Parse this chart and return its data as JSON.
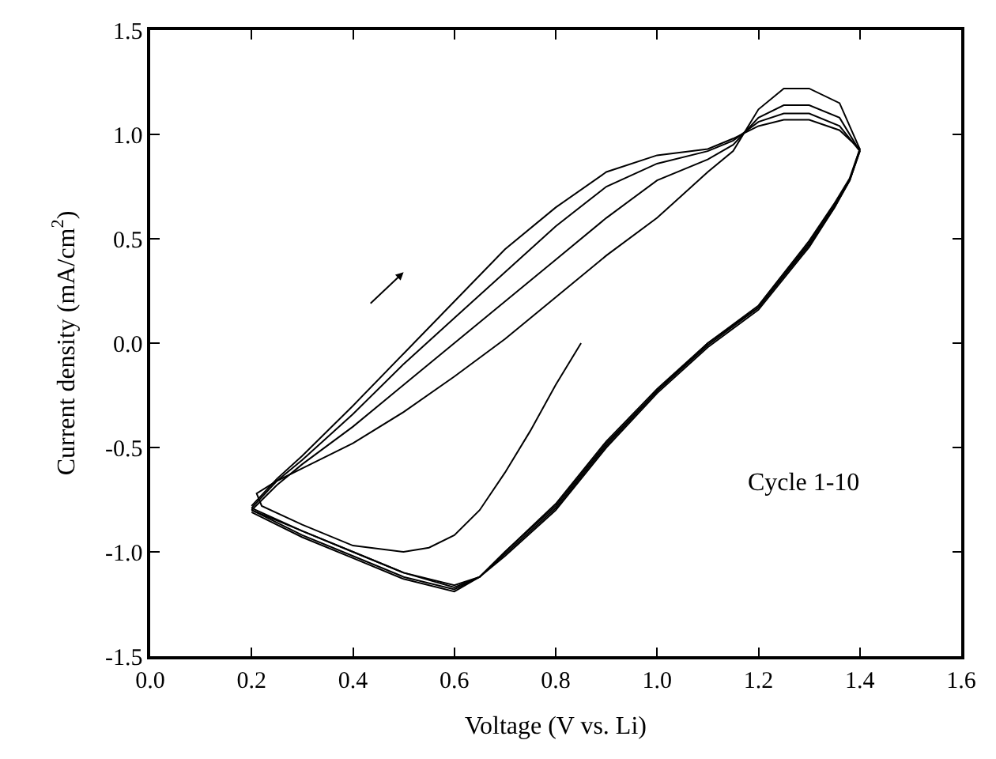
{
  "chart_data": {
    "type": "line",
    "xlabel": "Voltage (V vs. Li)",
    "ylabel": "Current density (mA/cm$^{2}$)",
    "annotations": [
      "Cycle 1-10"
    ],
    "xlim": [
      0.0,
      1.6
    ],
    "xticks": [
      {
        "value": 0,
        "label": "0.0"
      },
      0.2,
      0.4,
      0.6,
      0.8,
      {
        "value": 1,
        "label": "1.0"
      },
      1.2,
      1.4,
      1.6
    ],
    "ylim": [
      -1.5,
      1.5
    ],
    "yticks": [
      -1.5,
      {
        "value": -1,
        "label": "-1.0"
      },
      -0.5,
      {
        "value": 0,
        "label": "0.0"
      },
      0.5,
      {
        "value": 1,
        "label": "1.0"
      },
      1.5
    ],
    "marker": "none",
    "line_style": "solid",
    "series": [
      {
        "color": "#000000",
        "x": [
          0.85,
          0.8,
          0.75,
          0.7,
          0.65,
          0.6,
          0.55,
          0.5,
          0.4,
          0.3,
          0.22,
          0.21,
          0.25,
          0.3,
          0.4,
          0.5,
          0.6,
          0.7,
          0.8,
          0.9,
          1.0,
          1.1,
          1.15,
          1.2,
          1.25,
          1.3,
          1.36,
          1.4,
          1.38,
          1.35,
          1.3,
          1.2,
          1.1,
          1.0,
          0.9,
          0.8,
          0.7,
          0.65,
          0.6,
          0.5,
          0.4,
          0.3,
          0.2
        ],
        "values": [
          0.0,
          -0.2,
          -0.42,
          -0.62,
          -0.8,
          -0.92,
          -0.98,
          -1.0,
          -0.97,
          -0.87,
          -0.78,
          -0.72,
          -0.66,
          -0.6,
          -0.48,
          -0.33,
          -0.16,
          0.02,
          0.22,
          0.42,
          0.6,
          0.82,
          0.92,
          1.12,
          1.22,
          1.22,
          1.15,
          0.93,
          0.78,
          0.65,
          0.46,
          0.16,
          -0.02,
          -0.24,
          -0.5,
          -0.8,
          -1.02,
          -1.12,
          -1.16,
          -1.1,
          -1.0,
          -0.9,
          -0.8
        ]
      },
      {
        "color": "#000000",
        "x": [
          0.2,
          0.25,
          0.3,
          0.4,
          0.5,
          0.6,
          0.7,
          0.8,
          0.9,
          1.0,
          1.1,
          1.15,
          1.2,
          1.25,
          1.3,
          1.36,
          1.4,
          1.38,
          1.35,
          1.3,
          1.2,
          1.1,
          1.0,
          0.9,
          0.8,
          0.7,
          0.65,
          0.6,
          0.5,
          0.4,
          0.3,
          0.2
        ],
        "values": [
          -0.8,
          -0.68,
          -0.58,
          -0.4,
          -0.2,
          0.0,
          0.2,
          0.4,
          0.6,
          0.78,
          0.88,
          0.95,
          1.08,
          1.14,
          1.14,
          1.08,
          0.92,
          0.78,
          0.65,
          0.47,
          0.17,
          -0.01,
          -0.23,
          -0.49,
          -0.79,
          -1.01,
          -1.12,
          -1.17,
          -1.1,
          -1.0,
          -0.9,
          -0.79
        ]
      },
      {
        "color": "#000000",
        "x": [
          0.2,
          0.25,
          0.3,
          0.4,
          0.5,
          0.6,
          0.7,
          0.8,
          0.9,
          1.0,
          1.1,
          1.15,
          1.2,
          1.25,
          1.3,
          1.36,
          1.4,
          1.38,
          1.35,
          1.3,
          1.2,
          1.1,
          1.0,
          0.9,
          0.8,
          0.7,
          0.65,
          0.6,
          0.5,
          0.4,
          0.3,
          0.2
        ],
        "values": [
          -0.79,
          -0.66,
          -0.56,
          -0.34,
          -0.1,
          0.12,
          0.34,
          0.56,
          0.75,
          0.86,
          0.92,
          0.97,
          1.06,
          1.1,
          1.1,
          1.04,
          0.92,
          0.78,
          0.66,
          0.48,
          0.17,
          0.0,
          -0.23,
          -0.48,
          -0.78,
          -1.0,
          -1.12,
          -1.18,
          -1.12,
          -1.02,
          -0.92,
          -0.8
        ]
      },
      {
        "color": "#000000",
        "x": [
          0.2,
          0.25,
          0.3,
          0.4,
          0.5,
          0.6,
          0.7,
          0.8,
          0.9,
          1.0,
          1.1,
          1.15,
          1.2,
          1.25,
          1.3,
          1.36,
          1.4,
          1.38,
          1.35,
          1.3,
          1.2,
          1.1,
          1.0,
          0.9,
          0.8,
          0.7,
          0.65,
          0.6,
          0.5,
          0.4,
          0.3,
          0.2
        ],
        "values": [
          -0.78,
          -0.65,
          -0.54,
          -0.3,
          -0.05,
          0.2,
          0.45,
          0.65,
          0.82,
          0.9,
          0.93,
          0.98,
          1.04,
          1.07,
          1.07,
          1.02,
          0.93,
          0.79,
          0.67,
          0.49,
          0.18,
          0.0,
          -0.22,
          -0.47,
          -0.77,
          -1.0,
          -1.12,
          -1.19,
          -1.13,
          -1.03,
          -0.93,
          -0.81
        ]
      }
    ]
  }
}
